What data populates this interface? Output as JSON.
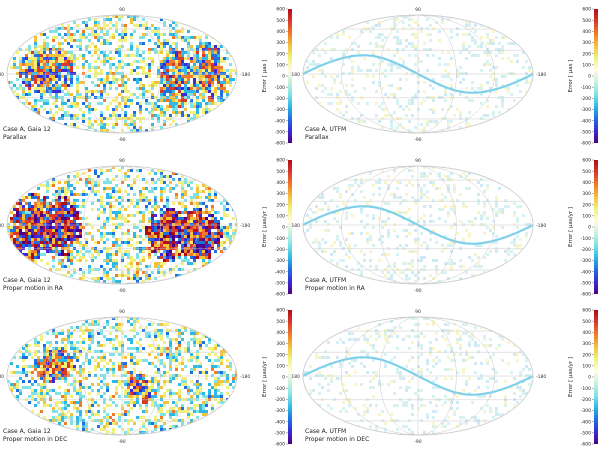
{
  "figure": {
    "colorbar_label": "Error [ μas ]",
    "colorbar_label_pm": "Error [ μas/yr ]",
    "colormap": [
      "#4b0082",
      "#3a2bd6",
      "#1f6fe0",
      "#2fb8e6",
      "#7fe3e6",
      "#c9f0e0",
      "#fffde0",
      "#f2f07a",
      "#f2c23a",
      "#f07a2a",
      "#d83a2a",
      "#b00d1a"
    ],
    "axis_labels": {
      "top": "90",
      "bottom": "-90",
      "left": "180",
      "right": "-180"
    }
  },
  "chart_data": [
    {
      "type": "heatmap",
      "projection": "mollweide",
      "caption_line1": "Case A, Gaia 12",
      "caption_line2": "Parallax",
      "cbar_ticks": [
        "600",
        "500",
        "400",
        "300",
        "200",
        "100",
        "0",
        "-100",
        "-200",
        "-300",
        "-400",
        "-500",
        "-600"
      ],
      "clim": [
        -600,
        600
      ],
      "blobs": [
        [
          120,
          5,
          45,
          35
        ],
        [
          -80,
          -5,
          25,
          45
        ],
        [
          -130,
          5,
          30,
          45
        ]
      ]
    },
    {
      "type": "heatmap",
      "projection": "mollweide",
      "caption_line1": "Case A, UTFM",
      "caption_line2": "Parallax",
      "cbar_ticks": [
        "600",
        "500",
        "400",
        "300",
        "200",
        "100",
        "0",
        "-100",
        "-200",
        "-300",
        "-400",
        "-500",
        "-600"
      ],
      "clim": [
        -600,
        600
      ],
      "blobs": [],
      "ecliptic": true
    },
    {
      "type": "heatmap",
      "projection": "mollweide",
      "caption_line1": "Case A, Gaia 12",
      "caption_line2": "Proper motion in RA",
      "cbar_ticks": [
        "600",
        "500",
        "400",
        "300",
        "200",
        "100",
        "0",
        "-100",
        "-200",
        "-300",
        "-400",
        "-500",
        "-600"
      ],
      "clim": [
        -600,
        600
      ],
      "blobs": [
        [
          140,
          0,
          40,
          50
        ],
        [
          95,
          0,
          30,
          45
        ],
        [
          -70,
          -10,
          35,
          40
        ],
        [
          -120,
          -10,
          35,
          40
        ]
      ]
    },
    {
      "type": "heatmap",
      "projection": "mollweide",
      "caption_line1": "Case A, UTFM",
      "caption_line2": "Proper motion in RA",
      "cbar_ticks": [
        "600",
        "500",
        "400",
        "300",
        "200",
        "100",
        "0",
        "-100",
        "-200",
        "-300",
        "-400",
        "-500",
        "-600"
      ],
      "clim": [
        -600,
        600
      ],
      "blobs": [],
      "ecliptic": true
    },
    {
      "type": "heatmap",
      "projection": "mollweide",
      "caption_line1": "Case A, Gaia 12",
      "caption_line2": "Proper motion in DEC",
      "cbar_ticks": [
        "600",
        "500",
        "400",
        "300",
        "200",
        "100",
        "0",
        "-100",
        "-200",
        "-300",
        "-400",
        "-500",
        "-600"
      ],
      "clim": [
        -600,
        600
      ],
      "blobs": [
        [
          -25,
          -15,
          20,
          25
        ],
        [
          110,
          15,
          35,
          25
        ]
      ]
    },
    {
      "type": "heatmap",
      "projection": "mollweide",
      "caption_line1": "Case A, UTFM",
      "caption_line2": "Proper motion in DEC",
      "cbar_ticks": [
        "600",
        "500",
        "400",
        "300",
        "200",
        "100",
        "0",
        "-100",
        "-200",
        "-300",
        "-400",
        "-500",
        "-600"
      ],
      "clim": [
        -600,
        600
      ],
      "blobs": [],
      "ecliptic": true
    }
  ]
}
